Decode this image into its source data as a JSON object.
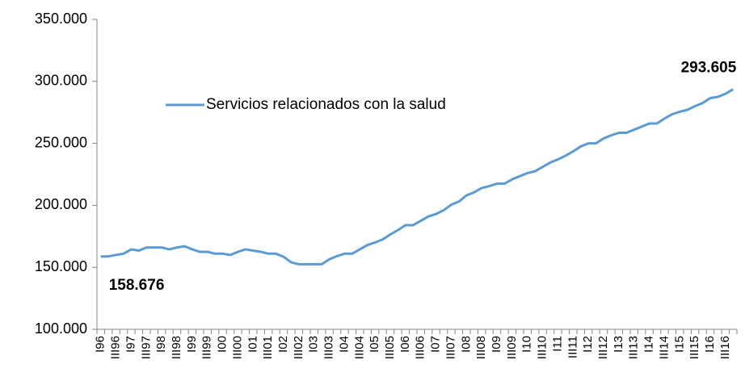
{
  "chart_data": {
    "type": "line",
    "categories": [
      "I96",
      null,
      "III96",
      null,
      "I97",
      null,
      "III97",
      null,
      "I98",
      null,
      "III98",
      null,
      "I99",
      null,
      "III99",
      null,
      "I00",
      null,
      "III00",
      null,
      "I01",
      null,
      "III01",
      null,
      "I02",
      null,
      "III02",
      null,
      "I03",
      null,
      "III03",
      null,
      "I04",
      null,
      "III04",
      null,
      "I05",
      null,
      "III05",
      null,
      "I06",
      null,
      "III06",
      null,
      "I07",
      null,
      "III07",
      null,
      "I08",
      null,
      "III08",
      null,
      "I09",
      null,
      "III09",
      null,
      "I10",
      null,
      "III10",
      null,
      "I11",
      null,
      "III11",
      null,
      "I12",
      null,
      "III12",
      null,
      "I13",
      null,
      "III13",
      null,
      "I14",
      null,
      "III14",
      null,
      "I15",
      null,
      "III15",
      null,
      "I16",
      null,
      "III16",
      null
    ],
    "series": [
      {
        "name": "Servicios relacionados con la salud",
        "color": "#5b9bd5",
        "values": [
          158676,
          158800,
          160000,
          161000,
          164500,
          163500,
          166000,
          166000,
          166000,
          164500,
          166000,
          167000,
          164500,
          162500,
          162500,
          161000,
          161000,
          160000,
          162500,
          164500,
          163500,
          162500,
          161000,
          161000,
          158500,
          154000,
          152500,
          152500,
          152500,
          152500,
          156500,
          159000,
          161000,
          161000,
          164500,
          168000,
          170000,
          172500,
          176500,
          180000,
          184000,
          184000,
          187500,
          191000,
          193000,
          196000,
          200500,
          203000,
          208000,
          210500,
          214000,
          215500,
          217500,
          217500,
          221000,
          223500,
          226000,
          227500,
          231000,
          234500,
          237000,
          240000,
          243500,
          247500,
          250000,
          250000,
          254000,
          256500,
          258500,
          258500,
          261000,
          263500,
          266000,
          266000,
          270000,
          273500,
          275500,
          277000,
          280000,
          282500,
          286500,
          287500,
          290000,
          293605
        ],
        "value_labels": [
          "158.676",
          null,
          null,
          null,
          null,
          null,
          null,
          null,
          null,
          null,
          null,
          null,
          null,
          null,
          null,
          null,
          null,
          null,
          null,
          null,
          null,
          null,
          null,
          null,
          null,
          null,
          null,
          null,
          null,
          null,
          null,
          null,
          null,
          null,
          null,
          null,
          null,
          null,
          null,
          null,
          null,
          null,
          null,
          null,
          null,
          null,
          null,
          null,
          null,
          null,
          null,
          null,
          null,
          null,
          null,
          null,
          null,
          null,
          null,
          null,
          null,
          null,
          null,
          null,
          null,
          null,
          null,
          null,
          null,
          null,
          null,
          null,
          null,
          null,
          null,
          null,
          null,
          null,
          null,
          null,
          null,
          null,
          null,
          "293.605"
        ]
      }
    ],
    "ylim": [
      100000,
      350000
    ],
    "yticks": [
      {
        "value": 100000,
        "label": "100.000"
      },
      {
        "value": 150000,
        "label": "150.000"
      },
      {
        "value": 200000,
        "label": "200.000"
      },
      {
        "value": 250000,
        "label": "250.000"
      },
      {
        "value": 300000,
        "label": "300.000"
      },
      {
        "value": 350000,
        "label": "350.000"
      }
    ],
    "grid": false,
    "legend": "upper left"
  }
}
